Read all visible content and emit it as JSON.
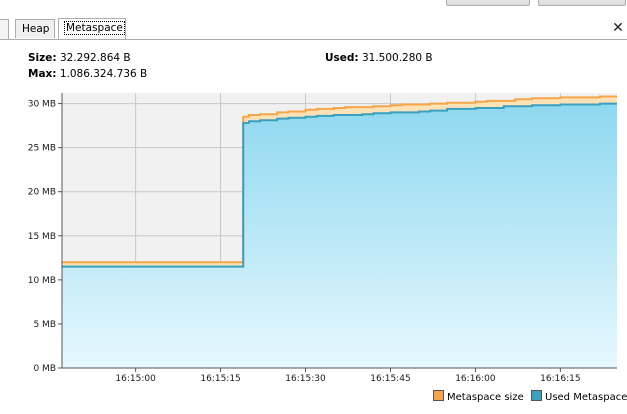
{
  "tabs": [
    {
      "label": "Heap"
    },
    {
      "label": "Metaspace"
    }
  ],
  "stats": {
    "size_label": "Size:",
    "size_value": "32.292.864 B",
    "max_label": "Max:",
    "max_value": "1.086.324.736 B",
    "used_label": "Used:",
    "used_value": "31.500.280 B"
  },
  "colors": {
    "metaspace_size": "#f5a64a",
    "metaspace_size_fill": "#fde2b8",
    "used_metaspace": "#3aa0c0",
    "used_fill_top": "#8fd8f0",
    "used_fill_bottom": "#e6f8fe",
    "grid": "#c8c8c8",
    "plot_bg": "#f1f1f1"
  },
  "chart_data": {
    "type": "area",
    "ylabel": "",
    "xlabel": "",
    "ylim": [
      0,
      31.2
    ],
    "yticks": [
      {
        "value": 0,
        "label": "0 MB"
      },
      {
        "value": 5,
        "label": "5 MB"
      },
      {
        "value": 10,
        "label": "10 MB"
      },
      {
        "value": 15,
        "label": "15 MB"
      },
      {
        "value": 20,
        "label": "20 MB"
      },
      {
        "value": 25,
        "label": "25 MB"
      },
      {
        "value": 30,
        "label": "30 MB"
      }
    ],
    "xlim": [
      "16:14:47",
      "16:16:25"
    ],
    "xticks": [
      {
        "value": "16:15:00",
        "label": "16:15:00"
      },
      {
        "value": "16:15:15",
        "label": "16:15:15"
      },
      {
        "value": "16:15:30",
        "label": "16:15:30"
      },
      {
        "value": "16:15:45",
        "label": "16:15:45"
      },
      {
        "value": "16:16:00",
        "label": "16:16:00"
      },
      {
        "value": "16:16:15",
        "label": "16:16:15"
      }
    ],
    "legend_position": "bottom-right",
    "series": [
      {
        "name": "Metaspace size",
        "x": [
          "16:14:47",
          "16:15:18",
          "16:15:19",
          "16:15:20",
          "16:15:22",
          "16:15:25",
          "16:15:27",
          "16:15:30",
          "16:15:32",
          "16:15:35",
          "16:15:37",
          "16:15:40",
          "16:15:42",
          "16:15:45",
          "16:15:47",
          "16:15:50",
          "16:15:52",
          "16:15:55",
          "16:15:57",
          "16:16:00",
          "16:16:02",
          "16:16:05",
          "16:16:07",
          "16:16:10",
          "16:16:12",
          "16:16:15",
          "16:16:17",
          "16:16:20",
          "16:16:22",
          "16:16:25"
        ],
        "values": [
          12.0,
          12.0,
          28.5,
          28.7,
          28.8,
          29.0,
          29.1,
          29.3,
          29.4,
          29.5,
          29.6,
          29.6,
          29.7,
          29.8,
          29.9,
          29.9,
          30.0,
          30.1,
          30.1,
          30.2,
          30.3,
          30.3,
          30.5,
          30.6,
          30.6,
          30.7,
          30.7,
          30.7,
          30.8,
          30.8
        ]
      },
      {
        "name": "Used Metaspace",
        "x": [
          "16:14:47",
          "16:15:18",
          "16:15:19",
          "16:15:20",
          "16:15:22",
          "16:15:25",
          "16:15:27",
          "16:15:30",
          "16:15:32",
          "16:15:35",
          "16:15:37",
          "16:15:40",
          "16:15:42",
          "16:15:45",
          "16:15:47",
          "16:15:50",
          "16:15:52",
          "16:15:55",
          "16:15:57",
          "16:16:00",
          "16:16:02",
          "16:16:05",
          "16:16:07",
          "16:16:10",
          "16:16:12",
          "16:16:15",
          "16:16:17",
          "16:16:20",
          "16:16:22",
          "16:16:25"
        ],
        "values": [
          11.5,
          11.5,
          27.8,
          28.0,
          28.1,
          28.3,
          28.4,
          28.5,
          28.6,
          28.7,
          28.7,
          28.8,
          28.9,
          29.0,
          29.0,
          29.1,
          29.2,
          29.4,
          29.4,
          29.5,
          29.5,
          29.7,
          29.7,
          29.8,
          29.8,
          29.9,
          29.9,
          29.9,
          30.0,
          30.0
        ]
      }
    ]
  }
}
